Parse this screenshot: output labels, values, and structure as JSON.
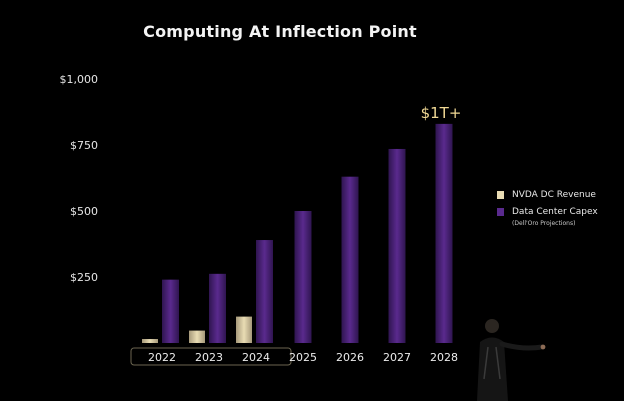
{
  "title": "Computing At Inflection Point",
  "colors": {
    "background": "#000000",
    "revenue": "#e9dcb4",
    "capex": "#5a2a8e",
    "annotation": "#f1d995"
  },
  "legend": {
    "revenue_label": "NVDA DC Revenue",
    "capex_label": "Data Center Capex",
    "capex_note": "(Dell'Oro Projections)"
  },
  "annotation": "$1T+",
  "chart_data": {
    "type": "bar",
    "title": "Computing At Inflection Point",
    "xlabel": "",
    "ylabel": "",
    "categories": [
      "2022",
      "2023",
      "2024",
      "2025",
      "2026",
      "2027",
      "2028"
    ],
    "highlighted_categories": [
      "2022",
      "2023",
      "2024"
    ],
    "y_ticks": [
      "$1,000",
      "$750",
      "$500",
      "$250"
    ],
    "ylim": [
      0,
      1000
    ],
    "grid": false,
    "legend_position": "right",
    "series": [
      {
        "name": "NVDA DC Revenue",
        "values": [
          15,
          47,
          100,
          null,
          null,
          null,
          null
        ]
      },
      {
        "name": "Data Center Capex",
        "values": [
          240,
          262,
          390,
          500,
          630,
          735,
          830
        ]
      }
    ],
    "annotations": [
      {
        "category": "2028",
        "text": "$1T+"
      }
    ]
  }
}
